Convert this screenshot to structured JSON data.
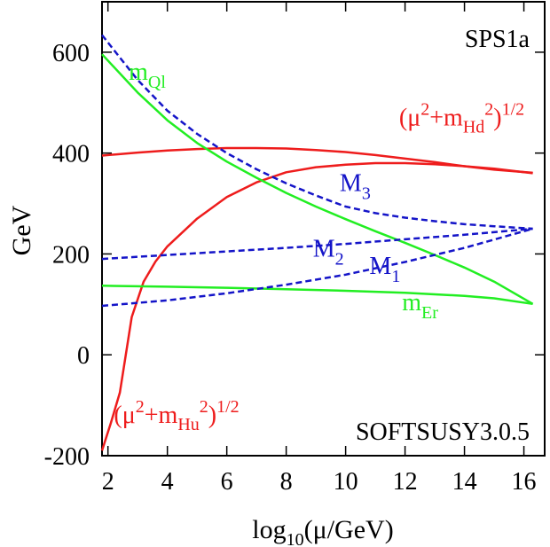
{
  "chart_data": {
    "type": "line",
    "xlabel_main": "log",
    "xlabel_sub": "10",
    "xlabel_tail": "(μ/GeV)",
    "ylabel": "GeV",
    "xlim": [
      1.8,
      16.7
    ],
    "ylim": [
      -200,
      700
    ],
    "xticks": [
      2,
      4,
      6,
      8,
      10,
      12,
      14,
      16
    ],
    "yticks": [
      -200,
      0,
      200,
      400,
      600
    ],
    "tick_labels_x": [
      "2",
      "4",
      "6",
      "8",
      "10",
      "12",
      "14",
      "16"
    ],
    "tick_labels_y": [
      "-200",
      "0",
      "200",
      "400",
      "600"
    ],
    "grid": false,
    "corner_labels": {
      "top_right": "SPS1a",
      "bottom_right": "SOFTSUSY3.0.5"
    },
    "colors": {
      "red": "#ee1c1c",
      "green": "#22ee22",
      "blue": "#1414c8"
    },
    "series": [
      {
        "id": "mHd",
        "color": "red",
        "dash": false,
        "x": [
          1.8,
          3,
          4,
          5,
          6,
          7,
          8,
          9,
          10,
          11,
          12,
          13,
          14,
          15,
          16.3
        ],
        "y": [
          395,
          401,
          405,
          408,
          410,
          410,
          409,
          406,
          402,
          396,
          389,
          382,
          374,
          367,
          361
        ]
      },
      {
        "id": "mHu",
        "color": "red",
        "dash": false,
        "x": [
          1.8,
          2.1,
          2.4,
          2.8,
          3.2,
          3.6,
          4,
          5,
          6,
          7,
          8,
          9,
          10,
          11,
          12,
          13,
          14,
          15,
          16.3
        ],
        "y": [
          -190,
          -135,
          -75,
          75,
          145,
          185,
          215,
          270,
          313,
          342,
          362,
          372,
          377,
          380,
          380,
          378,
          374,
          369,
          360
        ]
      },
      {
        "id": "mQl",
        "color": "green",
        "dash": false,
        "x": [
          1.8,
          3,
          4,
          5,
          6,
          7,
          8,
          9,
          10,
          11,
          12,
          13,
          14,
          15,
          16.3
        ],
        "y": [
          596,
          520,
          465,
          420,
          383,
          351,
          321,
          294,
          269,
          245,
          222,
          198,
          173,
          145,
          101
        ]
      },
      {
        "id": "mEr",
        "color": "green",
        "dash": false,
        "x": [
          1.8,
          4,
          6,
          8,
          10,
          12,
          13,
          14,
          15,
          16.3
        ],
        "y": [
          137,
          135,
          133,
          130,
          127,
          123,
          120,
          117,
          112,
          101
        ]
      },
      {
        "id": "M3",
        "color": "blue",
        "dash": true,
        "x": [
          1.8,
          3,
          4,
          5,
          6,
          7,
          8,
          9,
          10,
          11,
          12,
          13,
          14,
          15,
          16.3
        ],
        "y": [
          634,
          545,
          484,
          438,
          400,
          368,
          340,
          316,
          294,
          281,
          272,
          265,
          259,
          255,
          250
        ]
      },
      {
        "id": "M2",
        "color": "blue",
        "dash": true,
        "x": [
          1.8,
          4,
          6,
          8,
          10,
          12,
          14,
          16.3
        ],
        "y": [
          190,
          198,
          205,
          212,
          220,
          229,
          238,
          250
        ]
      },
      {
        "id": "M1",
        "color": "blue",
        "dash": true,
        "x": [
          1.8,
          4,
          6,
          8,
          10,
          12,
          14,
          16.3
        ],
        "y": [
          97,
          108,
          122,
          139,
          159,
          184,
          212,
          250
        ]
      }
    ],
    "annotations": [
      {
        "id": "m-ql",
        "color": "green",
        "base": "m",
        "sub": "Ql",
        "at": [
          2.7,
          545
        ]
      },
      {
        "id": "m-er",
        "color": "green",
        "base": "m",
        "sub": "Er",
        "at": [
          11.9,
          88
        ]
      },
      {
        "id": "m3",
        "color": "blue",
        "base": "M",
        "sub": "3",
        "at": [
          9.8,
          325
        ]
      },
      {
        "id": "m2",
        "color": "blue",
        "base": "M",
        "sub": "2",
        "at": [
          8.9,
          195
        ]
      },
      {
        "id": "m1",
        "color": "blue",
        "base": "M",
        "sub": "1",
        "at": [
          10.8,
          160
        ]
      },
      {
        "id": "hd",
        "color": "red",
        "pre": "(μ",
        "sup1": "2",
        "mid": "+m",
        "sub": "Hd",
        "sup2": "2",
        "post": ")",
        "sup3": "1/2",
        "at": [
          11.8,
          455
        ]
      },
      {
        "id": "hu",
        "color": "red",
        "pre": "(μ",
        "sup1": "2",
        "mid": "+m",
        "sub": "Hu",
        "sup2": "2",
        "post": ")",
        "sup3": "1/2",
        "at": [
          2.2,
          -135
        ]
      }
    ]
  }
}
